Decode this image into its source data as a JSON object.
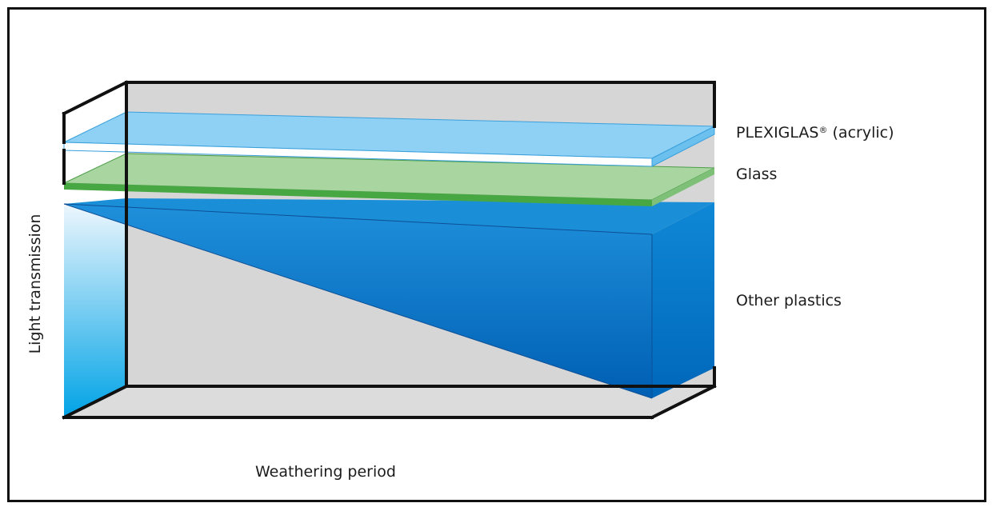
{
  "diagram": {
    "x_axis_label": "Weathering period",
    "y_axis_label": "Light transmission",
    "series": [
      {
        "name": "PLEXIGLAS",
        "mark": "®",
        "suffix": " (acrylic)",
        "trend": "constant"
      },
      {
        "name": "Glass",
        "trend": "nearly constant"
      },
      {
        "name": "Other plastics",
        "trend": "decreasing"
      }
    ]
  },
  "colors": {
    "frame": "#111111",
    "box_back": "#d6d6d6",
    "box_floor": "#dcdcdc",
    "acrylic_top": "#8fd0f5",
    "acrylic_front": "#ffffff",
    "acrylic_side": "#6cc0ee",
    "glass_top": "#a8d5a0",
    "glass_front": "#47a843",
    "glass_side": "#7fc079",
    "plastics_top": "#1a8fd8",
    "plastics_front": "#0070c4",
    "plastics_side": "#0a7fd0"
  }
}
